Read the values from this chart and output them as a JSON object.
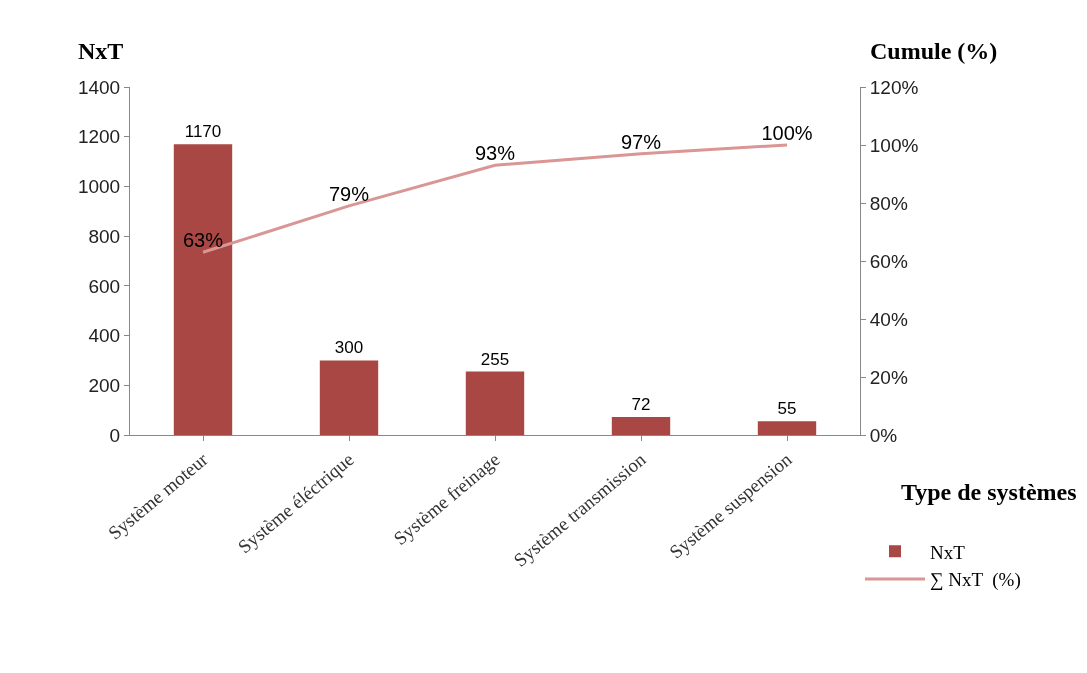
{
  "chart_data": {
    "type": "bar",
    "xlabel": "Type de systèmes",
    "ylabel": "NxT",
    "y2label": "Cumule (%)",
    "categories": [
      "Système moteur",
      "Système éléctrique",
      "Système freinage",
      "Système transmission",
      "Système suspension"
    ],
    "series": [
      {
        "name": "NxT",
        "color": "#a84743",
        "values": [
          1170,
          300,
          255,
          72,
          55
        ],
        "value_labels": [
          "1170",
          "300",
          "255",
          "72",
          "55"
        ]
      },
      {
        "name": "∑ NxT  (%)",
        "type": "line",
        "axis": "y2",
        "color": "#d99694",
        "marker": "none",
        "line_style": "solid",
        "values": [
          63,
          79,
          93,
          97,
          100
        ],
        "value_labels": [
          "63%",
          "79%",
          "93%",
          "97%",
          "100%"
        ]
      }
    ],
    "ylim": [
      0,
      1400
    ],
    "yticks": [
      0,
      200,
      400,
      600,
      800,
      1000,
      1200,
      1400
    ],
    "y2lim": [
      0,
      120
    ],
    "y2ticks": [
      {
        "value": 0,
        "label": "0%"
      },
      {
        "value": 20,
        "label": "20%"
      },
      {
        "value": 40,
        "label": "40%"
      },
      {
        "value": 60,
        "label": "60%"
      },
      {
        "value": 80,
        "label": "80%"
      },
      {
        "value": 100,
        "label": "100%"
      },
      {
        "value": 120,
        "label": "120%"
      }
    ],
    "grid": false,
    "legend": "bottom right"
  }
}
